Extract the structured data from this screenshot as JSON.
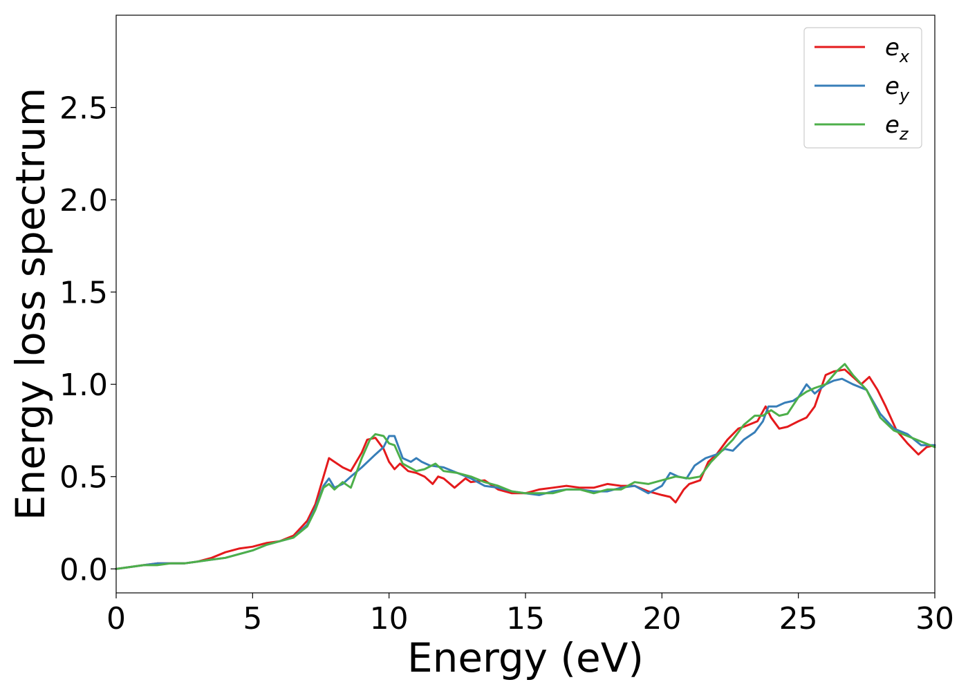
{
  "chart_data": {
    "type": "line",
    "xlabel": "Energy (eV)",
    "ylabel": "Energy loss spectrum",
    "xlim": [
      0,
      30
    ],
    "ylim": [
      -0.13,
      3.0
    ],
    "xticks": [
      0,
      5,
      10,
      15,
      20,
      25,
      30
    ],
    "xtick_labels": [
      "0",
      "5",
      "10",
      "15",
      "20",
      "25",
      "30"
    ],
    "yticks": [
      0.0,
      0.5,
      1.0,
      1.5,
      2.0,
      2.5
    ],
    "ytick_labels": [
      "0.0",
      "0.5",
      "1.0",
      "1.5",
      "2.0",
      "2.5"
    ],
    "grid": false,
    "legend_position": "top-right",
    "series": [
      {
        "name": "e",
        "subscript": "x",
        "color": "#e41a1c",
        "points": [
          [
            0,
            0
          ],
          [
            0.5,
            0.01
          ],
          [
            1,
            0.02
          ],
          [
            1.5,
            0.03
          ],
          [
            2,
            0.03
          ],
          [
            2.5,
            0.03
          ],
          [
            3,
            0.04
          ],
          [
            3.5,
            0.06
          ],
          [
            4,
            0.09
          ],
          [
            4.5,
            0.11
          ],
          [
            5,
            0.12
          ],
          [
            5.5,
            0.14
          ],
          [
            6,
            0.15
          ],
          [
            6.5,
            0.18
          ],
          [
            7,
            0.26
          ],
          [
            7.3,
            0.35
          ],
          [
            7.6,
            0.5
          ],
          [
            7.8,
            0.6
          ],
          [
            8,
            0.58
          ],
          [
            8.3,
            0.55
          ],
          [
            8.6,
            0.53
          ],
          [
            9,
            0.63
          ],
          [
            9.2,
            0.7
          ],
          [
            9.5,
            0.71
          ],
          [
            9.8,
            0.65
          ],
          [
            10,
            0.58
          ],
          [
            10.2,
            0.54
          ],
          [
            10.4,
            0.57
          ],
          [
            10.7,
            0.53
          ],
          [
            11,
            0.52
          ],
          [
            11.3,
            0.5
          ],
          [
            11.6,
            0.46
          ],
          [
            11.8,
            0.5
          ],
          [
            12,
            0.49
          ],
          [
            12.4,
            0.44
          ],
          [
            12.8,
            0.49
          ],
          [
            13,
            0.47
          ],
          [
            13.5,
            0.48
          ],
          [
            14,
            0.43
          ],
          [
            14.5,
            0.41
          ],
          [
            15,
            0.41
          ],
          [
            15.5,
            0.43
          ],
          [
            16,
            0.44
          ],
          [
            16.5,
            0.45
          ],
          [
            17,
            0.44
          ],
          [
            17.5,
            0.44
          ],
          [
            18,
            0.46
          ],
          [
            18.5,
            0.45
          ],
          [
            19,
            0.45
          ],
          [
            19.5,
            0.42
          ],
          [
            20,
            0.4
          ],
          [
            20.3,
            0.39
          ],
          [
            20.5,
            0.36
          ],
          [
            20.8,
            0.43
          ],
          [
            21,
            0.46
          ],
          [
            21.4,
            0.48
          ],
          [
            21.7,
            0.58
          ],
          [
            22,
            0.62
          ],
          [
            22.4,
            0.7
          ],
          [
            22.8,
            0.76
          ],
          [
            23,
            0.77
          ],
          [
            23.5,
            0.8
          ],
          [
            23.8,
            0.88
          ],
          [
            24,
            0.82
          ],
          [
            24.3,
            0.76
          ],
          [
            24.6,
            0.77
          ],
          [
            25,
            0.8
          ],
          [
            25.3,
            0.82
          ],
          [
            25.6,
            0.88
          ],
          [
            26,
            1.05
          ],
          [
            26.3,
            1.07
          ],
          [
            26.7,
            1.08
          ],
          [
            27,
            1.04
          ],
          [
            27.3,
            1.0
          ],
          [
            27.6,
            1.04
          ],
          [
            27.9,
            0.97
          ],
          [
            28.2,
            0.88
          ],
          [
            28.6,
            0.75
          ],
          [
            29,
            0.68
          ],
          [
            29.4,
            0.62
          ],
          [
            29.7,
            0.66
          ],
          [
            30,
            0.67
          ]
        ]
      },
      {
        "name": "e",
        "subscript": "y",
        "color": "#377eb8",
        "points": [
          [
            0,
            0
          ],
          [
            0.5,
            0.01
          ],
          [
            1,
            0.02
          ],
          [
            1.5,
            0.03
          ],
          [
            2,
            0.03
          ],
          [
            2.5,
            0.03
          ],
          [
            3,
            0.04
          ],
          [
            3.5,
            0.05
          ],
          [
            4,
            0.06
          ],
          [
            4.5,
            0.08
          ],
          [
            5,
            0.1
          ],
          [
            5.5,
            0.13
          ],
          [
            6,
            0.15
          ],
          [
            6.5,
            0.17
          ],
          [
            7,
            0.24
          ],
          [
            7.3,
            0.33
          ],
          [
            7.6,
            0.45
          ],
          [
            7.8,
            0.49
          ],
          [
            8,
            0.44
          ],
          [
            8.3,
            0.46
          ],
          [
            8.6,
            0.5
          ],
          [
            9,
            0.55
          ],
          [
            9.5,
            0.62
          ],
          [
            9.8,
            0.66
          ],
          [
            10,
            0.72
          ],
          [
            10.2,
            0.72
          ],
          [
            10.5,
            0.6
          ],
          [
            10.8,
            0.58
          ],
          [
            11,
            0.6
          ],
          [
            11.2,
            0.58
          ],
          [
            11.5,
            0.56
          ],
          [
            12,
            0.55
          ],
          [
            12.5,
            0.52
          ],
          [
            13,
            0.49
          ],
          [
            13.5,
            0.45
          ],
          [
            14,
            0.44
          ],
          [
            14.5,
            0.42
          ],
          [
            15,
            0.41
          ],
          [
            15.5,
            0.4
          ],
          [
            16,
            0.42
          ],
          [
            16.5,
            0.43
          ],
          [
            17,
            0.43
          ],
          [
            17.5,
            0.42
          ],
          [
            18,
            0.42
          ],
          [
            18.5,
            0.44
          ],
          [
            19,
            0.45
          ],
          [
            19.5,
            0.41
          ],
          [
            20,
            0.45
          ],
          [
            20.3,
            0.52
          ],
          [
            20.6,
            0.5
          ],
          [
            20.9,
            0.49
          ],
          [
            21.2,
            0.56
          ],
          [
            21.6,
            0.6
          ],
          [
            22,
            0.62
          ],
          [
            22.3,
            0.65
          ],
          [
            22.6,
            0.64
          ],
          [
            23,
            0.7
          ],
          [
            23.4,
            0.74
          ],
          [
            23.7,
            0.8
          ],
          [
            23.9,
            0.88
          ],
          [
            24.2,
            0.88
          ],
          [
            24.5,
            0.9
          ],
          [
            24.8,
            0.91
          ],
          [
            25,
            0.93
          ],
          [
            25.3,
            1.0
          ],
          [
            25.6,
            0.95
          ],
          [
            26,
            1.0
          ],
          [
            26.3,
            1.02
          ],
          [
            26.6,
            1.03
          ],
          [
            27,
            1.0
          ],
          [
            27.5,
            0.97
          ],
          [
            28,
            0.84
          ],
          [
            28.5,
            0.76
          ],
          [
            29,
            0.73
          ],
          [
            29.5,
            0.67
          ],
          [
            30,
            0.67
          ]
        ]
      },
      {
        "name": "e",
        "subscript": "z",
        "color": "#4daf4a",
        "points": [
          [
            0,
            0
          ],
          [
            0.5,
            0.01
          ],
          [
            1,
            0.02
          ],
          [
            1.5,
            0.02
          ],
          [
            2,
            0.03
          ],
          [
            2.5,
            0.03
          ],
          [
            3,
            0.04
          ],
          [
            3.5,
            0.05
          ],
          [
            4,
            0.06
          ],
          [
            4.5,
            0.08
          ],
          [
            5,
            0.1
          ],
          [
            5.5,
            0.13
          ],
          [
            6,
            0.15
          ],
          [
            6.5,
            0.17
          ],
          [
            7,
            0.23
          ],
          [
            7.3,
            0.32
          ],
          [
            7.6,
            0.44
          ],
          [
            7.8,
            0.46
          ],
          [
            8,
            0.43
          ],
          [
            8.3,
            0.47
          ],
          [
            8.6,
            0.44
          ],
          [
            9,
            0.6
          ],
          [
            9.3,
            0.7
          ],
          [
            9.5,
            0.73
          ],
          [
            9.8,
            0.72
          ],
          [
            10,
            0.68
          ],
          [
            10.2,
            0.67
          ],
          [
            10.5,
            0.57
          ],
          [
            11,
            0.53
          ],
          [
            11.3,
            0.54
          ],
          [
            11.7,
            0.57
          ],
          [
            12,
            0.53
          ],
          [
            12.5,
            0.52
          ],
          [
            13,
            0.5
          ],
          [
            13.5,
            0.47
          ],
          [
            14,
            0.45
          ],
          [
            14.5,
            0.42
          ],
          [
            15,
            0.41
          ],
          [
            15.5,
            0.41
          ],
          [
            16,
            0.41
          ],
          [
            16.5,
            0.43
          ],
          [
            17,
            0.43
          ],
          [
            17.5,
            0.41
          ],
          [
            18,
            0.43
          ],
          [
            18.5,
            0.43
          ],
          [
            19,
            0.47
          ],
          [
            19.5,
            0.46
          ],
          [
            20,
            0.48
          ],
          [
            20.5,
            0.5
          ],
          [
            21,
            0.49
          ],
          [
            21.4,
            0.5
          ],
          [
            21.8,
            0.58
          ],
          [
            22.2,
            0.64
          ],
          [
            22.6,
            0.7
          ],
          [
            23,
            0.78
          ],
          [
            23.4,
            0.83
          ],
          [
            23.7,
            0.83
          ],
          [
            24,
            0.86
          ],
          [
            24.3,
            0.83
          ],
          [
            24.6,
            0.84
          ],
          [
            25,
            0.93
          ],
          [
            25.3,
            0.96
          ],
          [
            25.6,
            0.98
          ],
          [
            26,
            1.0
          ],
          [
            26.4,
            1.07
          ],
          [
            26.7,
            1.11
          ],
          [
            27,
            1.05
          ],
          [
            27.5,
            0.97
          ],
          [
            28,
            0.82
          ],
          [
            28.5,
            0.75
          ],
          [
            29,
            0.72
          ],
          [
            29.5,
            0.69
          ],
          [
            30,
            0.66
          ]
        ]
      }
    ]
  }
}
